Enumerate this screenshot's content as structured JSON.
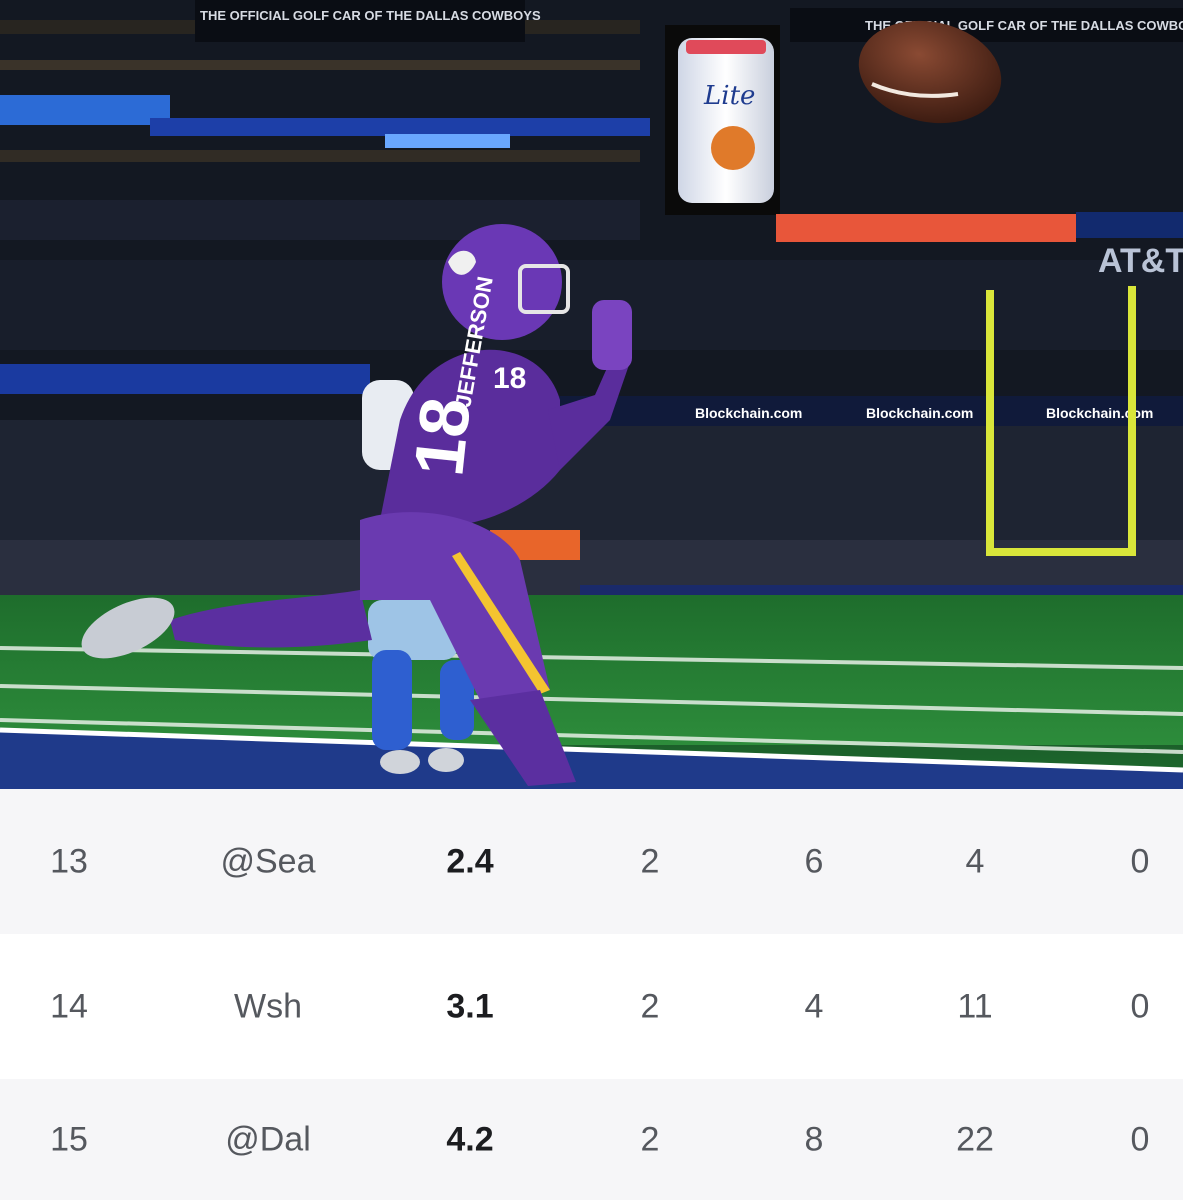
{
  "photo": {
    "banner_left": "THE OFFICIAL GOLF CAR OF THE DALLAS COWBOYS",
    "banner_right": "THE OFFICIAL GOLF CAR OF THE DALLAS COWBOYS",
    "scoreboard_logo": "AT&T",
    "ribbon_text": "Blockchain.com",
    "can_label": "Lite",
    "jersey_number": "18",
    "jersey_name": "JEFFERSON"
  },
  "stats": {
    "rows": [
      {
        "week": "13",
        "opponent": "@Sea",
        "points": "2.4",
        "c3": "2",
        "c4": "6",
        "c5": "4",
        "c6": "0"
      },
      {
        "week": "14",
        "opponent": "Wsh",
        "points": "3.1",
        "c3": "2",
        "c4": "4",
        "c5": "11",
        "c6": "0"
      },
      {
        "week": "15",
        "opponent": "@Dal",
        "points": "4.2",
        "c3": "2",
        "c4": "8",
        "c5": "22",
        "c6": "0"
      }
    ]
  },
  "colors": {
    "vikings_purple": "#4f2683",
    "vikings_gold": "#f4c430",
    "field_green": "#2a8a3a",
    "endzone_blue": "#1f3a8a"
  }
}
